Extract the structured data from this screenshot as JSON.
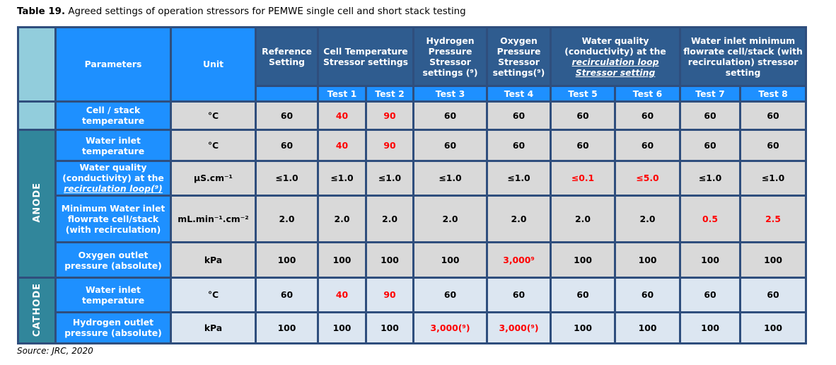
{
  "caption": {
    "label": "Table 19.",
    "text": "Agreed settings of operation stressors for PEMWE single cell and short stack testing"
  },
  "source": "Source: JRC, 2020",
  "header": {
    "parameters": "Parameters",
    "unit": "Unit",
    "reference": "Reference Setting",
    "cell_temp": "Cell Temperature Stressor settings",
    "hydrogen_pressure": "Hydrogen Pressure Stressor settings (⁹)",
    "oxygen_pressure": "Oxygen Pressure Stressor settings(⁹)",
    "water_quality_a": "Water quality (conductivity) at the",
    "water_quality_b": "recirculation loop",
    "water_quality_c": "Stressor setting",
    "water_flow": "Water inlet minimum flowrate cell/stack (with recirculation) stressor setting",
    "tests": [
      "Test 1",
      "Test 2",
      "Test 3",
      "Test 4",
      "Test 5",
      "Test 6",
      "Test 7",
      "Test 8"
    ]
  },
  "sections": {
    "anode": "ANODE",
    "cathode": "CATHODE"
  },
  "rows": [
    {
      "param": "Cell / stack temperature",
      "unit": "°C",
      "values": [
        "60",
        "40",
        "90",
        "60",
        "60",
        "60",
        "60",
        "60",
        "60"
      ]
    },
    {
      "param": "Water inlet temperature",
      "unit": "°C",
      "values": [
        "60",
        "40",
        "90",
        "60",
        "60",
        "60",
        "60",
        "60",
        "60"
      ]
    },
    {
      "param_a": "Water quality (conductivity) at the",
      "param_b": "recirculation loop(⁹)",
      "unit": "µS.cm⁻¹",
      "values": [
        "≤1.0",
        "≤1.0",
        "≤1.0",
        "≤1.0",
        "≤1.0",
        "≤0.1",
        "≤5.0",
        "≤1.0",
        "≤1.0"
      ]
    },
    {
      "param": "Minimum Water inlet flowrate cell/stack (with recirculation)",
      "unit": "mL.min⁻¹.cm⁻²",
      "values": [
        "2.0",
        "2.0",
        "2.0",
        "2.0",
        "2.0",
        "2.0",
        "2.0",
        "0.5",
        "2.5"
      ]
    },
    {
      "param": "Oxygen outlet pressure (absolute)",
      "unit": "kPa",
      "values": [
        "100",
        "100",
        "100",
        "100",
        "3,000⁹",
        "100",
        "100",
        "100",
        "100"
      ]
    },
    {
      "param": "Water inlet temperature",
      "unit": "°C",
      "values": [
        "60",
        "40",
        "90",
        "60",
        "60",
        "60",
        "60",
        "60",
        "60"
      ]
    },
    {
      "param": "Hydrogen outlet pressure (absolute)",
      "unit": "kPa",
      "values": [
        "100",
        "100",
        "100",
        "3,000(⁹)",
        "3,000(⁹)",
        "100",
        "100",
        "100",
        "100"
      ]
    }
  ]
}
